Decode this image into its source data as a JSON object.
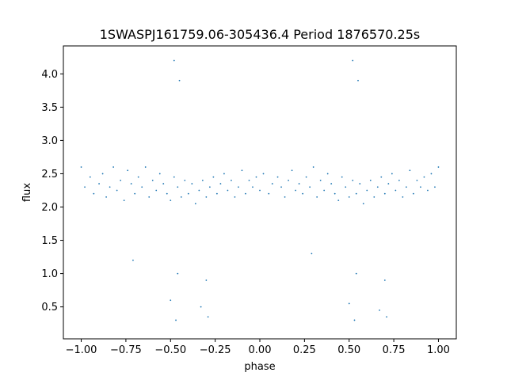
{
  "chart_data": {
    "type": "scatter",
    "title": "1SWASPJ161759.06-305436.4 Period 1876570.25s",
    "xlabel": "phase",
    "ylabel": "flux",
    "xlim": [
      -1.1,
      1.1
    ],
    "ylim": [
      0.02,
      4.42
    ],
    "x_ticks": [
      -1.0,
      -0.75,
      -0.5,
      -0.25,
      0.0,
      0.25,
      0.5,
      0.75,
      1.0
    ],
    "x_tick_labels": [
      "−1.00",
      "−0.75",
      "−0.50",
      "−0.25",
      "0.00",
      "0.25",
      "0.50",
      "0.75",
      "1.00"
    ],
    "y_ticks": [
      0.5,
      1.0,
      1.5,
      2.0,
      2.5,
      3.0,
      3.5,
      4.0
    ],
    "y_tick_labels": [
      "0.5",
      "1.0",
      "1.5",
      "2.0",
      "2.5",
      "3.0",
      "3.5",
      "4.0"
    ],
    "grid": false,
    "marker_color": "#1f77b4",
    "series": [
      {
        "x": [
          -1.0,
          -0.98,
          -0.95,
          -0.93,
          -0.9,
          -0.88,
          -0.86,
          -0.84,
          -0.82,
          -0.8,
          -0.78,
          -0.76,
          -0.74,
          -0.72,
          -0.7,
          -0.68,
          -0.66,
          -0.64,
          -0.62,
          -0.6,
          -0.58,
          -0.56,
          -0.54,
          -0.52,
          -0.5,
          -0.48,
          -0.46,
          -0.44,
          -0.42,
          -0.4,
          -0.38,
          -0.36,
          -0.34,
          -0.32,
          -0.3,
          -0.28,
          -0.26,
          -0.24,
          -0.22,
          -0.2,
          -0.18,
          -0.16,
          -0.14,
          -0.12,
          -0.1,
          -0.08,
          -0.06,
          -0.04,
          -0.02,
          0.0,
          0.02,
          0.05,
          0.07,
          0.1,
          0.12,
          0.14,
          0.16,
          0.18,
          0.2,
          0.22,
          0.24,
          0.26,
          0.28,
          0.3,
          0.32,
          0.34,
          0.36,
          0.38,
          0.4,
          0.42,
          0.44,
          0.46,
          0.48,
          0.5,
          0.52,
          0.54,
          0.56,
          0.58,
          0.6,
          0.62,
          0.64,
          0.66,
          0.68,
          0.7,
          0.72,
          0.74,
          0.76,
          0.78,
          0.8,
          0.82,
          0.84,
          0.86,
          0.88,
          0.9,
          0.92,
          0.94,
          0.96,
          0.98,
          1.0,
          -0.71,
          -0.5,
          -0.47,
          -0.46,
          -0.33,
          -0.3,
          -0.29,
          0.29,
          0.5,
          0.53,
          0.54,
          0.67,
          0.7,
          0.71,
          -0.48,
          0.52,
          -0.45,
          0.55
        ],
        "y": [
          2.6,
          2.3,
          2.45,
          2.2,
          2.35,
          2.5,
          2.15,
          2.3,
          2.6,
          2.25,
          2.4,
          2.1,
          2.55,
          2.35,
          2.2,
          2.45,
          2.3,
          2.6,
          2.15,
          2.4,
          2.25,
          2.5,
          2.35,
          2.2,
          2.1,
          2.45,
          2.3,
          2.15,
          2.4,
          2.2,
          2.35,
          2.05,
          2.25,
          2.4,
          2.15,
          2.3,
          2.45,
          2.2,
          2.35,
          2.5,
          2.25,
          2.4,
          2.15,
          2.3,
          2.55,
          2.2,
          2.4,
          2.3,
          2.45,
          2.25,
          2.5,
          2.2,
          2.35,
          2.45,
          2.3,
          2.15,
          2.4,
          2.55,
          2.25,
          2.35,
          2.2,
          2.45,
          2.3,
          2.6,
          2.15,
          2.4,
          2.25,
          2.5,
          2.35,
          2.2,
          2.1,
          2.45,
          2.3,
          2.15,
          2.4,
          2.2,
          2.35,
          2.05,
          2.25,
          2.4,
          2.15,
          2.3,
          2.45,
          2.2,
          2.35,
          2.5,
          2.25,
          2.4,
          2.15,
          2.3,
          2.55,
          2.2,
          2.4,
          2.3,
          2.45,
          2.25,
          2.5,
          2.3,
          2.6,
          1.2,
          0.6,
          0.3,
          1.0,
          0.5,
          0.9,
          0.35,
          1.3,
          0.55,
          0.3,
          1.0,
          0.45,
          0.9,
          0.35,
          4.2,
          4.2,
          3.9,
          3.9
        ]
      }
    ]
  }
}
